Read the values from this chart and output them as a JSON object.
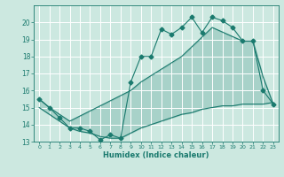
{
  "xlabel": "Humidex (Indice chaleur)",
  "bg_color": "#cce8e0",
  "grid_color": "#ffffff",
  "line_color": "#1a7a6e",
  "xlim": [
    -0.5,
    23.5
  ],
  "ylim": [
    13,
    21
  ],
  "xticks": [
    0,
    1,
    2,
    3,
    4,
    5,
    6,
    7,
    8,
    9,
    10,
    11,
    12,
    13,
    14,
    15,
    16,
    17,
    18,
    19,
    20,
    21,
    22,
    23
  ],
  "yticks": [
    13,
    14,
    15,
    16,
    17,
    18,
    19,
    20
  ],
  "line1_x": [
    0,
    1,
    2,
    3,
    4,
    5,
    6,
    7,
    8,
    9,
    10,
    11,
    12,
    13,
    14,
    15,
    16,
    17,
    18,
    19,
    20,
    21,
    22,
    23
  ],
  "line1_y": [
    15.5,
    15.0,
    14.4,
    13.8,
    13.8,
    13.6,
    13.1,
    13.4,
    13.2,
    16.5,
    18.0,
    18.0,
    19.6,
    19.3,
    19.7,
    20.3,
    19.4,
    20.3,
    20.1,
    19.7,
    18.9,
    18.9,
    16.0,
    15.2
  ],
  "line2_x": [
    0,
    1,
    2,
    3,
    9,
    10,
    14,
    17,
    20,
    21,
    22,
    23
  ],
  "line2_y": [
    15.5,
    15.0,
    14.6,
    14.2,
    16.0,
    16.5,
    18.0,
    19.7,
    18.9,
    18.9,
    16.8,
    15.2
  ],
  "line3_x": [
    0,
    1,
    2,
    3,
    4,
    5,
    6,
    7,
    8,
    9,
    10,
    11,
    12,
    13,
    14,
    15,
    16,
    17,
    18,
    19,
    20,
    21,
    22,
    23
  ],
  "line3_y": [
    15.0,
    14.6,
    14.2,
    13.8,
    13.6,
    13.5,
    13.3,
    13.2,
    13.2,
    13.5,
    13.8,
    14.0,
    14.2,
    14.4,
    14.6,
    14.7,
    14.9,
    15.0,
    15.1,
    15.1,
    15.2,
    15.2,
    15.2,
    15.3
  ]
}
